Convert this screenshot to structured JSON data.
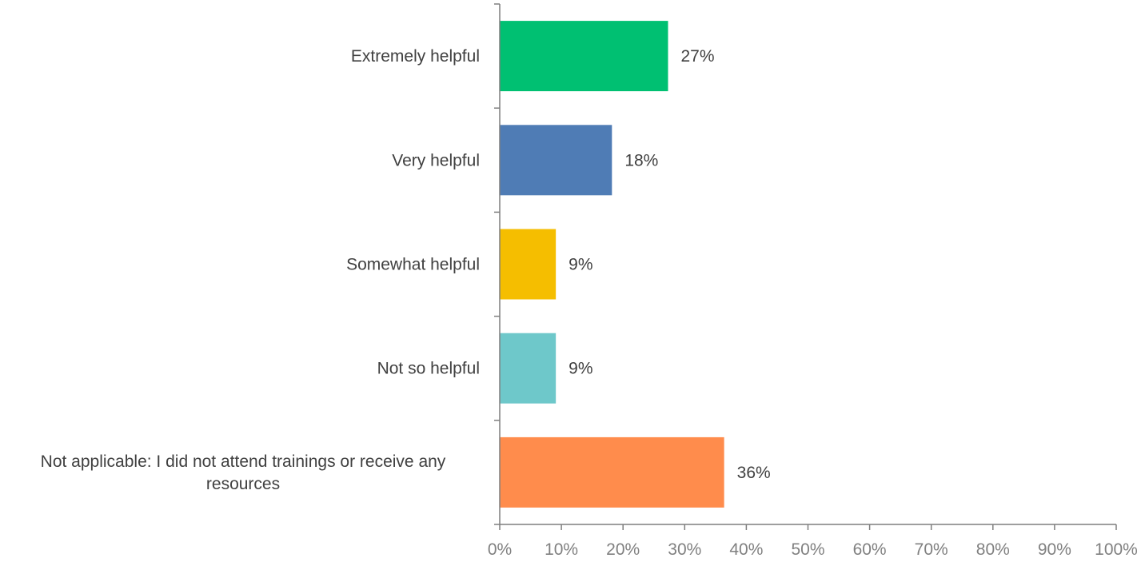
{
  "chart_data": {
    "type": "bar",
    "orientation": "horizontal",
    "categories": [
      "Extremely helpful",
      "Very helpful",
      "Somewhat helpful",
      "Not so helpful",
      "Not applicable: I did not attend trainings or receive any resources"
    ],
    "category_label_lines": [
      [
        "Extremely helpful"
      ],
      [
        "Very helpful"
      ],
      [
        "Somewhat helpful"
      ],
      [
        "Not so helpful"
      ],
      [
        "Not applicable: I did not attend trainings or receive any",
        "resources"
      ]
    ],
    "values": [
      27.3,
      18.2,
      9.1,
      9.1,
      36.4
    ],
    "data_labels": [
      "27%",
      "18%",
      "9%",
      "9%",
      "36%"
    ],
    "colors": [
      "#00c072",
      "#4f7cb5",
      "#f5be00",
      "#6ec8ca",
      "#ff8c4c"
    ],
    "xlim": [
      0,
      100
    ],
    "x_ticks": [
      0,
      10,
      20,
      30,
      40,
      50,
      60,
      70,
      80,
      90,
      100
    ],
    "x_tick_labels": [
      "0%",
      "10%",
      "20%",
      "30%",
      "40%",
      "50%",
      "60%",
      "70%",
      "80%",
      "90%",
      "100%"
    ],
    "grid": false,
    "legend": "none",
    "title": "",
    "xlabel": "",
    "ylabel": ""
  }
}
